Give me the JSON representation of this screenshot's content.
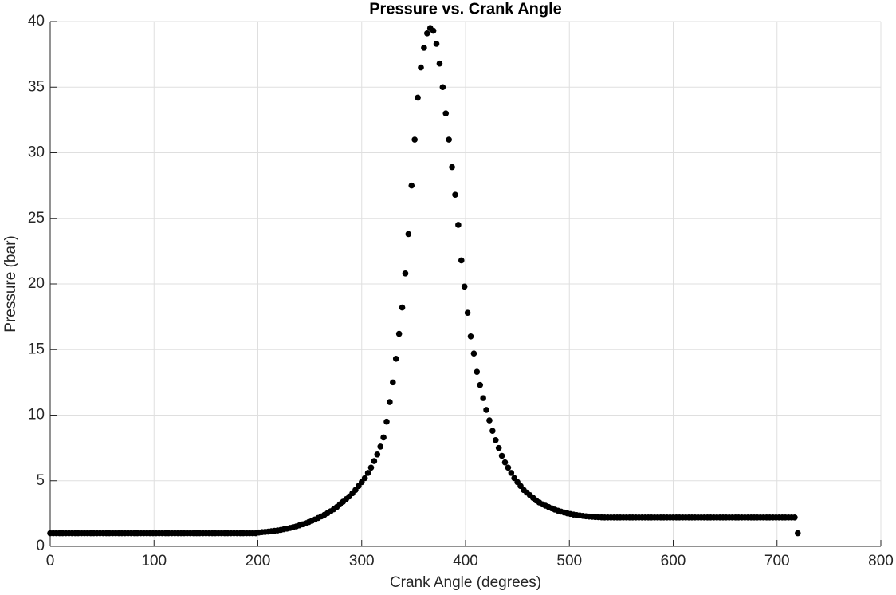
{
  "chart_data": {
    "type": "scatter",
    "title": "Pressure vs. Crank Angle",
    "x_label": "Crank Angle (degrees)",
    "y_label": "Pressure (bar)",
    "xlim": [
      0,
      800
    ],
    "xticks": [
      0,
      100,
      200,
      300,
      400,
      500,
      600,
      700,
      800
    ],
    "ylim": [
      0,
      40
    ],
    "yticks": [
      0,
      5,
      10,
      15,
      20,
      25,
      30,
      35,
      40
    ],
    "grid": true,
    "color": "#000000",
    "x": [
      0,
      3,
      6,
      9,
      12,
      15,
      18,
      21,
      24,
      27,
      30,
      33,
      36,
      39,
      42,
      45,
      48,
      51,
      54,
      57,
      60,
      63,
      66,
      69,
      72,
      75,
      78,
      81,
      84,
      87,
      90,
      93,
      96,
      99,
      102,
      105,
      108,
      111,
      114,
      117,
      120,
      123,
      126,
      129,
      132,
      135,
      138,
      141,
      144,
      147,
      150,
      153,
      156,
      159,
      162,
      165,
      168,
      171,
      174,
      177,
      180,
      183,
      186,
      189,
      192,
      195,
      198,
      201,
      204,
      207,
      210,
      213,
      216,
      219,
      222,
      225,
      228,
      231,
      234,
      237,
      240,
      243,
      246,
      249,
      252,
      255,
      258,
      261,
      264,
      267,
      270,
      273,
      276,
      279,
      282,
      285,
      288,
      291,
      294,
      297,
      300,
      303,
      306,
      309,
      312,
      315,
      318,
      321,
      324,
      327,
      330,
      333,
      336,
      339,
      342,
      345,
      348,
      351,
      354,
      357,
      360,
      363,
      366,
      369,
      372,
      375,
      378,
      381,
      384,
      387,
      390,
      393,
      396,
      399,
      402,
      405,
      408,
      411,
      414,
      417,
      420,
      423,
      426,
      429,
      432,
      435,
      438,
      441,
      444,
      447,
      450,
      453,
      456,
      459,
      462,
      465,
      468,
      471,
      474,
      477,
      480,
      483,
      486,
      489,
      492,
      495,
      498,
      501,
      504,
      507,
      510,
      513,
      516,
      519,
      522,
      525,
      528,
      531,
      534,
      537,
      540,
      543,
      546,
      549,
      552,
      555,
      558,
      561,
      564,
      567,
      570,
      573,
      576,
      579,
      582,
      585,
      588,
      591,
      594,
      597,
      600,
      603,
      606,
      609,
      612,
      615,
      618,
      621,
      624,
      627,
      630,
      633,
      636,
      639,
      642,
      645,
      648,
      651,
      654,
      657,
      660,
      663,
      666,
      669,
      672,
      675,
      678,
      681,
      684,
      687,
      690,
      693,
      696,
      699,
      702,
      705,
      708,
      711,
      714,
      717,
      720
    ],
    "values": [
      1.0,
      1.0,
      1.0,
      1.0,
      1.0,
      1.0,
      1.0,
      1.0,
      1.0,
      1.0,
      1.0,
      1.0,
      1.0,
      1.0,
      1.0,
      1.0,
      1.0,
      1.0,
      1.0,
      1.0,
      1.0,
      1.0,
      1.0,
      1.0,
      1.0,
      1.0,
      1.0,
      1.0,
      1.0,
      1.0,
      1.0,
      1.0,
      1.0,
      1.0,
      1.0,
      1.0,
      1.0,
      1.0,
      1.0,
      1.0,
      1.0,
      1.0,
      1.0,
      1.0,
      1.0,
      1.0,
      1.0,
      1.0,
      1.0,
      1.0,
      1.0,
      1.0,
      1.0,
      1.0,
      1.0,
      1.0,
      1.0,
      1.0,
      1.0,
      1.0,
      1.0,
      1.0,
      1.0,
      1.0,
      1.0,
      1.0,
      1.0,
      1.05,
      1.08,
      1.1,
      1.12,
      1.15,
      1.18,
      1.21,
      1.25,
      1.3,
      1.35,
      1.4,
      1.46,
      1.52,
      1.6,
      1.68,
      1.76,
      1.85,
      1.95,
      2.05,
      2.16,
      2.28,
      2.4,
      2.53,
      2.67,
      2.82,
      3.0,
      3.2,
      3.4,
      3.6,
      3.8,
      4.05,
      4.3,
      4.6,
      4.9,
      5.2,
      5.6,
      6.0,
      6.5,
      7.0,
      7.6,
      8.3,
      9.5,
      11.0,
      12.5,
      14.3,
      16.2,
      18.2,
      20.8,
      23.8,
      27.5,
      31.0,
      34.2,
      36.5,
      38.0,
      39.1,
      39.5,
      39.3,
      38.3,
      36.8,
      35.0,
      33.0,
      31.0,
      28.9,
      26.8,
      24.5,
      21.8,
      19.8,
      17.8,
      16.0,
      14.7,
      13.3,
      12.3,
      11.3,
      10.4,
      9.6,
      8.8,
      8.1,
      7.5,
      6.9,
      6.4,
      6.0,
      5.6,
      5.2,
      4.9,
      4.6,
      4.3,
      4.1,
      3.9,
      3.7,
      3.5,
      3.35,
      3.2,
      3.1,
      3.0,
      2.9,
      2.8,
      2.72,
      2.65,
      2.58,
      2.52,
      2.47,
      2.42,
      2.38,
      2.35,
      2.32,
      2.29,
      2.27,
      2.25,
      2.23,
      2.22,
      2.21,
      2.2,
      2.2,
      2.2,
      2.2,
      2.2,
      2.2,
      2.2,
      2.2,
      2.2,
      2.2,
      2.2,
      2.2,
      2.2,
      2.2,
      2.2,
      2.2,
      2.2,
      2.2,
      2.2,
      2.2,
      2.2,
      2.2,
      2.2,
      2.2,
      2.2,
      2.2,
      2.2,
      2.2,
      2.2,
      2.2,
      2.2,
      2.2,
      2.2,
      2.2,
      2.2,
      2.2,
      2.2,
      2.2,
      2.2,
      2.2,
      2.2,
      2.2,
      2.2,
      2.2,
      2.2,
      2.2,
      2.2,
      2.2,
      2.2,
      2.2,
      2.2,
      2.2,
      2.2,
      2.2,
      2.2,
      2.2,
      2.2,
      2.2,
      2.2,
      2.2,
      2.2,
      2.2,
      1.0
    ]
  }
}
